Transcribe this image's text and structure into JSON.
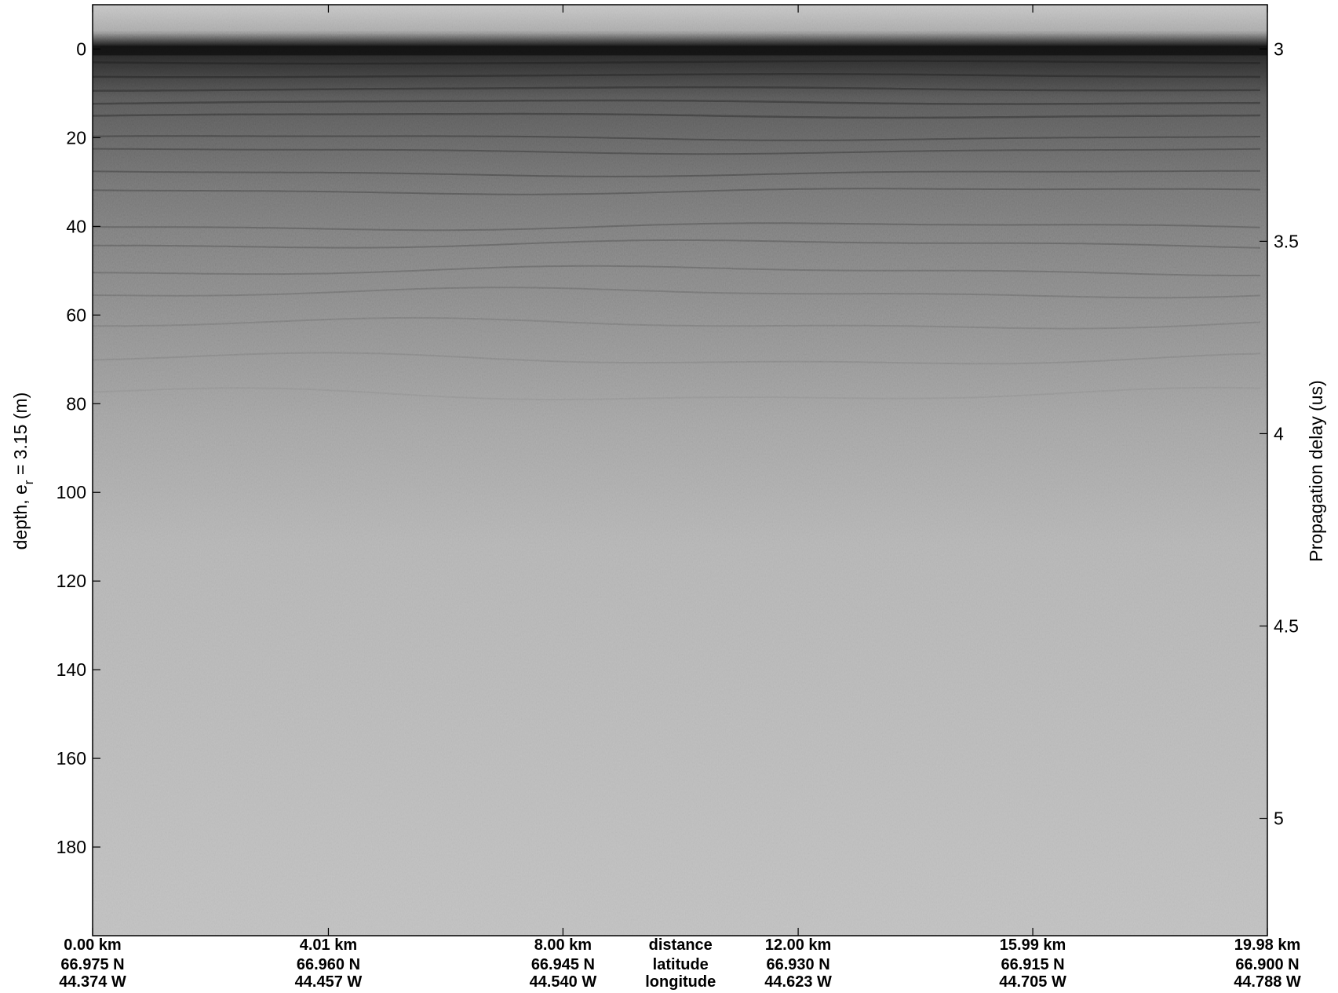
{
  "chart_data": {
    "type": "heatmap",
    "title": "",
    "y_left": {
      "label_prefix": "depth, e",
      "label_subscript": "r",
      "label_suffix": " = 3.15 (m)",
      "ticks": [
        "0",
        "20",
        "40",
        "60",
        "80",
        "100",
        "120",
        "140",
        "160",
        "180"
      ],
      "tick_values": [
        0,
        20,
        40,
        60,
        80,
        100,
        120,
        140,
        160,
        180
      ],
      "range": [
        -10,
        200
      ],
      "inverted": true
    },
    "y_right": {
      "label": "Propagation delay (us)",
      "ticks": [
        "3",
        "3.5",
        "4",
        "4.5",
        "5"
      ],
      "tick_values": [
        3,
        3.5,
        4,
        4.5,
        5
      ],
      "range": [
        2.885,
        5.305
      ]
    },
    "x_bottom": {
      "range_km": [
        0,
        19.98
      ],
      "row_labels": [
        "distance",
        "latitude",
        "longitude"
      ],
      "ticks": [
        {
          "distance": "0.00 km",
          "latitude": "66.975 N",
          "longitude": "44.374 W",
          "km": 0.0
        },
        {
          "distance": "4.01 km",
          "latitude": "66.960 N",
          "longitude": "44.457 W",
          "km": 4.01
        },
        {
          "distance": "8.00 km",
          "latitude": "66.945 N",
          "longitude": "44.540 W",
          "km": 8.0
        },
        {
          "distance": "12.00 km",
          "latitude": "66.930 N",
          "longitude": "44.623 W",
          "km": 12.0
        },
        {
          "distance": "15.99 km",
          "latitude": "66.915 N",
          "longitude": "44.705 W",
          "km": 15.99
        },
        {
          "distance": "19.98 km",
          "latitude": "66.900 N",
          "longitude": "44.788 W",
          "km": 19.98
        }
      ]
    },
    "image": {
      "colormap": "grayscale",
      "surface_depth_m": 0,
      "layers_depth_m": [
        3,
        6,
        9,
        12,
        15,
        20,
        23,
        28,
        32,
        40,
        44,
        50,
        55,
        62,
        70,
        78
      ]
    },
    "grid": false
  }
}
